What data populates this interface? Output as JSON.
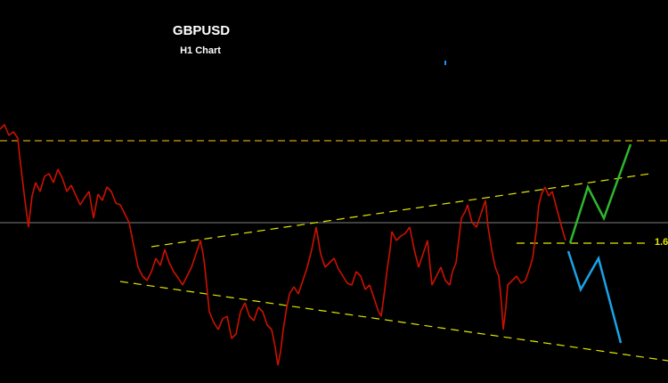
{
  "header": {
    "title": "GBPUSD",
    "subtitle": "H1 Chart"
  },
  "level_label": "1.6"
}
